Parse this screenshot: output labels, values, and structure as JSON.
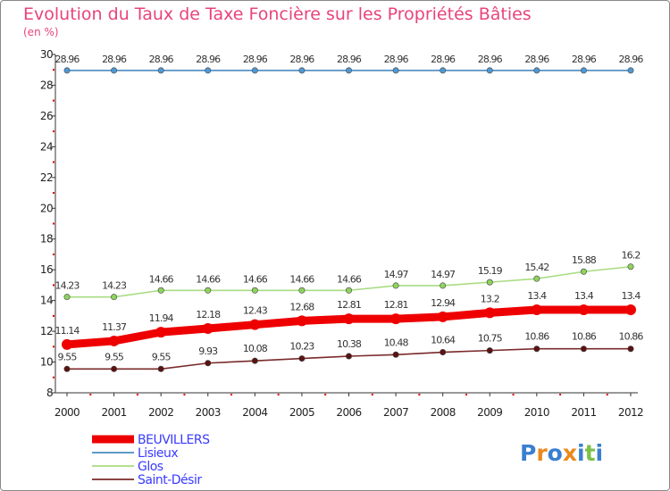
{
  "chart_data": {
    "type": "line",
    "title": "Evolution du Taux de Taxe Foncière sur les Propriétés Bâties",
    "subtitle": "(en %)",
    "xlabel": "",
    "ylabel": "",
    "ylim": [
      8,
      30
    ],
    "yticks": [
      8,
      10,
      12,
      14,
      16,
      18,
      20,
      22,
      24,
      26,
      28,
      30
    ],
    "x": [
      "2000",
      "2001",
      "2002",
      "2003",
      "2004",
      "2005",
      "2006",
      "2007",
      "2008",
      "2009",
      "2010",
      "2011",
      "2012"
    ],
    "grid": false,
    "legend_position": "bottom-left",
    "series": [
      {
        "name": "Lisieux",
        "color": "#4a8bc0",
        "marker_fill": "#4f97d1",
        "values": [
          28.96,
          28.96,
          28.96,
          28.96,
          28.96,
          28.96,
          28.96,
          28.96,
          28.96,
          28.96,
          28.96,
          28.96,
          28.96
        ],
        "labels": [
          "28.96",
          "28.96",
          "28.96",
          "28.96",
          "28.96",
          "28.96",
          "28.96",
          "28.96",
          "28.96",
          "28.96",
          "28.96",
          "28.96",
          "28.96"
        ]
      },
      {
        "name": "Glos",
        "color": "#a8dc82",
        "marker_fill": "#8ed35e",
        "values": [
          14.23,
          14.23,
          14.66,
          14.66,
          14.66,
          14.66,
          14.66,
          14.97,
          14.97,
          15.19,
          15.42,
          15.88,
          16.2
        ],
        "labels": [
          "14.23",
          "14.23",
          "14.66",
          "14.66",
          "14.66",
          "14.66",
          "14.66",
          "14.97",
          "14.97",
          "15.19",
          "15.42",
          "15.88",
          "16.2"
        ]
      },
      {
        "name": "BEUVILLERS",
        "color": "#ee0000",
        "marker_fill": "#ee0000",
        "values": [
          11.14,
          11.37,
          11.94,
          12.18,
          12.43,
          12.68,
          12.81,
          12.81,
          12.94,
          13.2,
          13.4,
          13.4,
          13.4
        ],
        "labels": [
          "11.14",
          "11.37",
          "11.94",
          "12.18",
          "12.43",
          "12.68",
          "12.81",
          "12.81",
          "12.94",
          "13.2",
          "13.4",
          "13.4",
          "13.4"
        ]
      },
      {
        "name": "Saint-Désir",
        "color": "#7a2a2a",
        "marker_fill": "#5a1212",
        "values": [
          9.55,
          9.55,
          9.55,
          9.93,
          10.08,
          10.23,
          10.38,
          10.48,
          10.64,
          10.75,
          10.86,
          10.86,
          10.86
        ],
        "labels": [
          "9.55",
          "9.55",
          "9.55",
          "9.93",
          "10.08",
          "10.23",
          "10.38",
          "10.48",
          "10.64",
          "10.75",
          "10.86",
          "10.86",
          "10.86"
        ]
      }
    ],
    "legend": [
      {
        "name": "BEUVILLERS",
        "color": "#ee0000",
        "text_color": "#3a3aff"
      },
      {
        "name": "Lisieux",
        "color": "#4a8bc0",
        "text_color": "#3a3aff"
      },
      {
        "name": "Glos",
        "color": "#a8dc82",
        "text_color": "#3a3aff"
      },
      {
        "name": "Saint-Désir",
        "color": "#7a2a2a",
        "text_color": "#3a3aff"
      }
    ]
  },
  "branding": {
    "logo_text": "Proxiti",
    "logo_letters": [
      "P",
      "r",
      "o",
      "x",
      "i",
      "t",
      "i"
    ],
    "logo_colors": [
      "#3a7fd0",
      "#e98a1e",
      "#3a7fd0",
      "#e98a1e",
      "#3a7fd0",
      "#7cc04a",
      "#3a7fd0"
    ]
  }
}
